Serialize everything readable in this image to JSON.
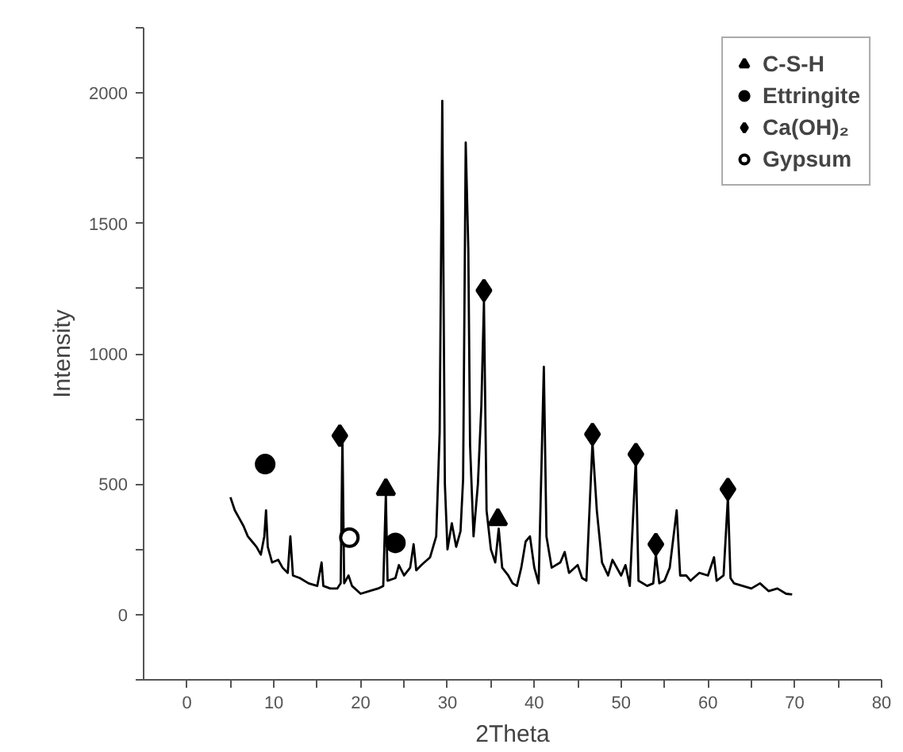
{
  "chart_data": {
    "type": "line",
    "xlabel": "2Theta",
    "ylabel": "Intensity",
    "xlim": [
      -5,
      80
    ],
    "ylim": [
      -250,
      2250
    ],
    "xticks": [
      0,
      {
        "value": 5,
        "label": null
      },
      10,
      {
        "value": 15,
        "label": null
      },
      20,
      {
        "value": 25,
        "label": null
      },
      30,
      {
        "value": 35,
        "label": null
      },
      40,
      {
        "value": 45,
        "label": null
      },
      50,
      {
        "value": 55,
        "label": null
      },
      60,
      {
        "value": 65,
        "label": null
      },
      70,
      {
        "value": 75,
        "label": null
      },
      80
    ],
    "yticks": [
      {
        "value": -250,
        "label": null
      },
      0,
      {
        "value": 250,
        "label": null
      },
      500,
      {
        "value": 750,
        "label": null
      },
      1000,
      {
        "value": 1250,
        "label": null
      },
      1500,
      {
        "value": 1750,
        "label": null
      },
      2000,
      {
        "value": 2250,
        "label": null
      }
    ],
    "grid": false,
    "legend": "top right",
    "series": [
      {
        "color": "#000000",
        "marker": "none",
        "line_style": "solid",
        "x": [
          5,
          5.5,
          6,
          6.5,
          7,
          7.5,
          8,
          8.5,
          8.9,
          9.1,
          9.3,
          9.8,
          10.5,
          11,
          11.6,
          11.9,
          12.2,
          13,
          14,
          15,
          15.5,
          15.7,
          16.5,
          17.3,
          17.7,
          17.9,
          18.1,
          18.6,
          19,
          20,
          21,
          22,
          22.6,
          22.9,
          23.1,
          24,
          24.4,
          25,
          25.7,
          26.1,
          26.4,
          27,
          28,
          28.7,
          29.1,
          29.4,
          29.7,
          30,
          30.5,
          31,
          31.5,
          31.8,
          32.1,
          32.4,
          32.6,
          33,
          33.5,
          33.9,
          34.2,
          34.5,
          35,
          35.5,
          35.9,
          36.3,
          37,
          37.5,
          38,
          38.5,
          39,
          39.5,
          40,
          40.5,
          41.1,
          41.4,
          42,
          43,
          43.5,
          44,
          45,
          45.5,
          46,
          46.7,
          47.2,
          47.8,
          48.5,
          49,
          50,
          50.5,
          51,
          51.7,
          52,
          53,
          53.7,
          54,
          54.4,
          55,
          55.6,
          56.4,
          56.8,
          57.5,
          58,
          59,
          60,
          60.7,
          61,
          61.8,
          62.3,
          62.6,
          63,
          64,
          65,
          66,
          67,
          68,
          69,
          69.7
        ],
        "values": [
          450,
          400,
          370,
          340,
          300,
          280,
          260,
          230,
          300,
          400,
          260,
          200,
          210,
          180,
          160,
          300,
          150,
          140,
          120,
          110,
          200,
          110,
          100,
          100,
          120,
          680,
          120,
          150,
          110,
          80,
          90,
          100,
          110,
          460,
          130,
          140,
          190,
          150,
          180,
          270,
          170,
          190,
          220,
          300,
          700,
          1970,
          500,
          250,
          350,
          260,
          320,
          520,
          1810,
          1400,
          650,
          300,
          500,
          800,
          1200,
          400,
          250,
          200,
          330,
          180,
          150,
          120,
          110,
          180,
          280,
          300,
          180,
          120,
          950,
          300,
          180,
          200,
          240,
          160,
          190,
          140,
          130,
          660,
          400,
          200,
          150,
          210,
          150,
          190,
          110,
          600,
          130,
          110,
          120,
          230,
          120,
          130,
          180,
          400,
          150,
          150,
          130,
          160,
          150,
          220,
          130,
          150,
          450,
          140,
          120,
          110,
          100,
          120,
          90,
          100,
          80,
          77
        ]
      },
      {
        "type": "scatter",
        "name": "C-S-H",
        "color": "#000000",
        "marker": "triangle",
        "x": [
          22.9,
          35.8
        ],
        "values": [
          480,
          365
        ]
      },
      {
        "type": "scatter",
        "name": "Ettringite",
        "color": "#000000",
        "marker": "circle",
        "x": [
          9.0,
          24.0
        ],
        "values": [
          577,
          275
        ]
      },
      {
        "type": "scatter",
        "name": "Ca(OH)₂",
        "color": "#000000",
        "marker": "diamond",
        "x": [
          17.6,
          34.2,
          46.7,
          51.7,
          54.0,
          62.3
        ],
        "values": [
          686,
          1243,
          692,
          615,
          270,
          481
        ]
      },
      {
        "type": "scatter",
        "name": "Gypsum",
        "color": "#ffffff",
        "marker": "circle",
        "x": [
          18.7
        ],
        "values": [
          295
        ]
      }
    ]
  }
}
